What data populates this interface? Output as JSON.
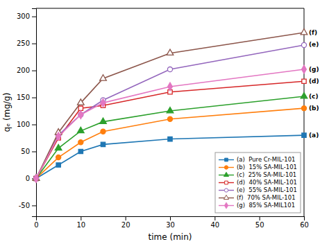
{
  "chart_data": {
    "type": "line",
    "xlabel": "time (min)",
    "ylabel": "qₑ (mg/g)",
    "x": [
      0,
      5,
      10,
      15,
      30,
      60
    ],
    "series": [
      {
        "name": "(a)  Pure Cr-MIL-101",
        "marker": "square",
        "values": [
          0,
          25,
          50,
          63,
          73,
          80
        ]
      },
      {
        "name": "(b)  15% SA-MIL-101",
        "marker": "circle",
        "values": [
          0,
          39,
          67,
          87,
          110,
          130
        ]
      },
      {
        "name": "(c)  25% SA-MIL-101",
        "marker": "triangle",
        "values": [
          0,
          56,
          88,
          105,
          125,
          152
        ]
      },
      {
        "name": "(d)  40% SA-MIL-101",
        "marker": "square-open",
        "values": [
          0,
          75,
          130,
          135,
          160,
          180
        ]
      },
      {
        "name": "(e)  55% SA-MIL-101",
        "marker": "circle-open",
        "values": [
          0,
          80,
          118,
          145,
          202,
          247
        ]
      },
      {
        "name": "(f)  70% SA-MIL-101",
        "marker": "triangle-open",
        "values": [
          0,
          85,
          140,
          185,
          232,
          270
        ]
      },
      {
        "name": "(g)  85% SA-MIL101",
        "marker": "diamond",
        "values": [
          0,
          78,
          118,
          140,
          170,
          202
        ]
      }
    ],
    "annotations": [
      {
        "text": "(a)",
        "x": 60,
        "y": 80
      },
      {
        "text": "(b)",
        "x": 60,
        "y": 130
      },
      {
        "text": "(c)",
        "x": 60,
        "y": 152
      },
      {
        "text": "(d)",
        "x": 60,
        "y": 180
      },
      {
        "text": "(e)",
        "x": 60,
        "y": 247
      },
      {
        "text": "(f)",
        "x": 60,
        "y": 270
      },
      {
        "text": "(g)",
        "x": 60,
        "y": 202
      }
    ],
    "xlim": [
      0,
      60
    ],
    "ylim": [
      -70,
      315
    ],
    "xticks": [
      0,
      10,
      20,
      30,
      40,
      50,
      60
    ],
    "yticks": [
      -50,
      0,
      50,
      100,
      150,
      200,
      250,
      300
    ],
    "grid": false,
    "legend": "lower right"
  }
}
